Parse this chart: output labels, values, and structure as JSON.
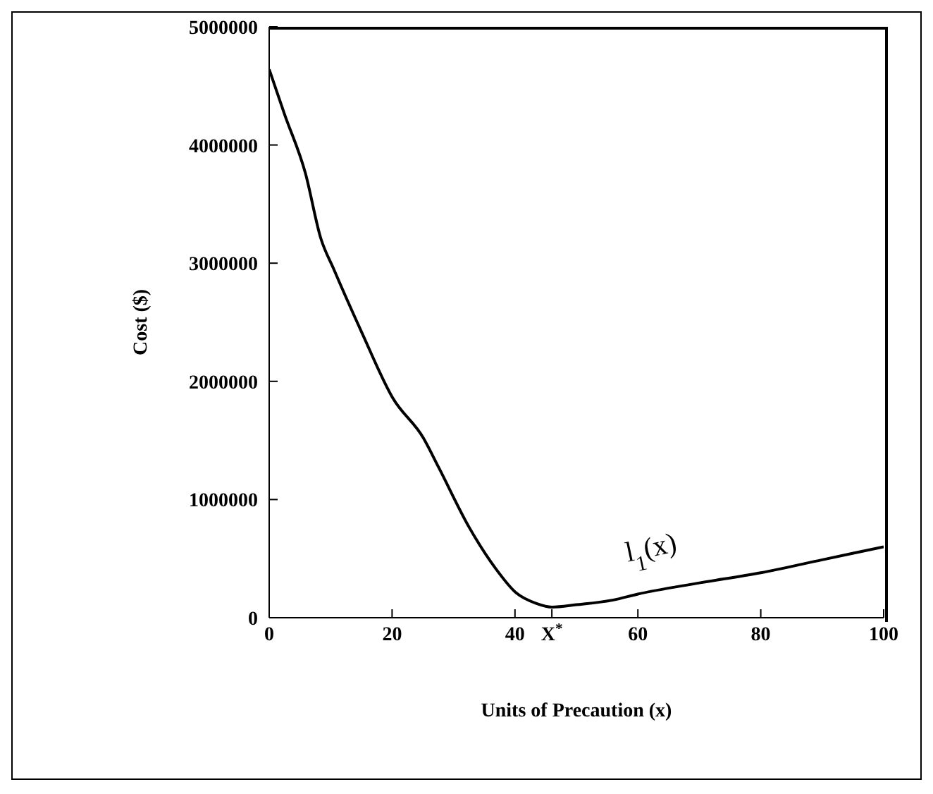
{
  "chart_data": {
    "type": "line",
    "xlabel": "Units of Precaution (x)",
    "ylabel": "Cost ($)",
    "x": [
      0,
      2.5,
      5.9,
      8.4,
      10.5,
      15.1,
      20.1,
      25.1,
      27.6,
      32.6,
      36.8,
      40.2,
      43.5,
      46,
      50,
      56,
      60,
      69.5,
      80,
      90,
      100
    ],
    "series": [
      {
        "color": "#000000",
        "values": [
          4640000,
          4260000,
          3760000,
          3210000,
          2950000,
          2410000,
          1860000,
          1520000,
          1270000,
          760000,
          420000,
          210000,
          120000,
          90000,
          110000,
          150000,
          200000,
          290000,
          380000,
          490000,
          600000
        ]
      }
    ],
    "xlim": [
      0,
      100
    ],
    "xticks": [
      0,
      20,
      40,
      {
        "value": 46,
        "label": "X$^{*}$"
      },
      60,
      80,
      100
    ],
    "ylim": [
      0,
      5000000
    ],
    "yticks": [
      0,
      1000000,
      2000000,
      3000000,
      4000000,
      5000000
    ],
    "annotations": [
      "l$_{1}$(x)"
    ],
    "grid": false,
    "legend": false,
    "marker": "none",
    "line_style": "solid"
  }
}
